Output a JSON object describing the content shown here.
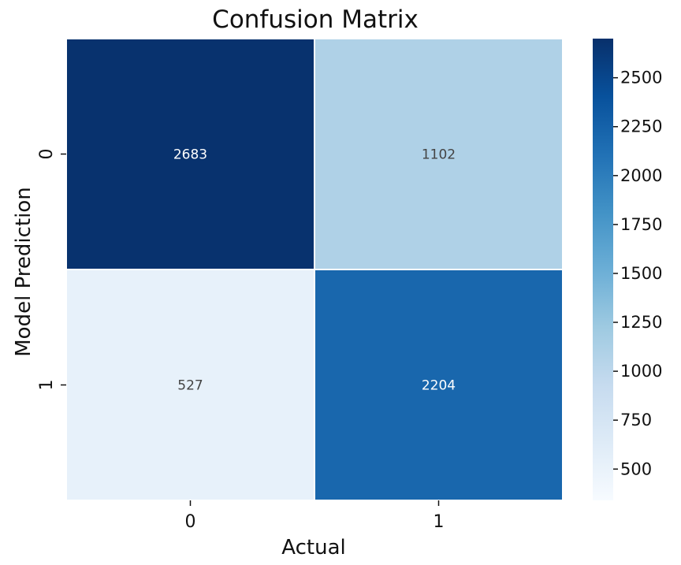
{
  "chart_data": {
    "type": "heatmap",
    "title": "Confusion Matrix",
    "xlabel": "Actual",
    "ylabel": "Model Prediction",
    "x_categories": [
      "0",
      "1"
    ],
    "y_categories": [
      "0",
      "1"
    ],
    "values": [
      [
        2683,
        1102
      ],
      [
        527,
        2204
      ]
    ],
    "colormap": "Blues",
    "color_low": "#f7fbff",
    "color_high": "#08306b",
    "color_range": [
      340,
      2700
    ],
    "colorbar": {
      "ticks": [
        "500",
        "750",
        "1000",
        "1250",
        "1500",
        "1750",
        "2000",
        "2250",
        "2500"
      ]
    }
  }
}
